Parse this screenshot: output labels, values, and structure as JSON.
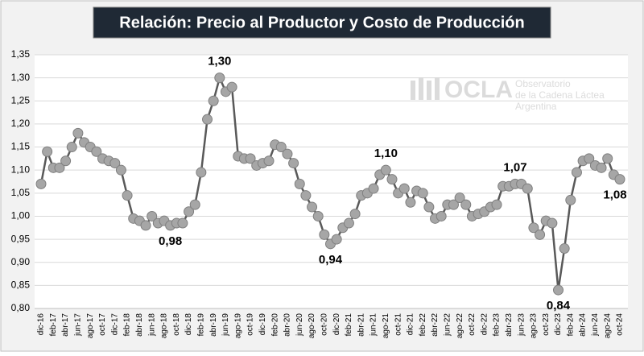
{
  "chart_data": {
    "type": "line",
    "title": "Relación: Precio al Productor y Costo de Producción",
    "watermark": {
      "brand": "OCLA",
      "line1": "Observatorio",
      "line2": "de la Cadena Láctea",
      "line3": "Argentina"
    },
    "categories": [
      "dic-16",
      null,
      "feb-17",
      null,
      "abr-17",
      null,
      "jun-17",
      null,
      "ago-17",
      null,
      "oct-17",
      null,
      "dic-17",
      null,
      "feb-18",
      null,
      "abr-18",
      null,
      "jun-18",
      null,
      "ago-18",
      null,
      "oct-18",
      null,
      "dic-18",
      null,
      "feb-19",
      null,
      "abr-19",
      null,
      "jun-19",
      null,
      "ago-19",
      null,
      "oct-19",
      null,
      "dic-19",
      null,
      "feb-20",
      null,
      "abr-20",
      null,
      "jun-20",
      null,
      "ago-20",
      null,
      "oct-20",
      null,
      "dic-20",
      null,
      "feb-21",
      null,
      "abr-21",
      null,
      "jun-21",
      null,
      "ago-21",
      null,
      "oct-21",
      null,
      "dic-21",
      null,
      "feb-22",
      null,
      "abr-22",
      null,
      "jun-22",
      null,
      "ago-22",
      null,
      "oct-22",
      null,
      "dic-22",
      null,
      "feb-23",
      null,
      "abr-23",
      null,
      "jun-23",
      null,
      "ago-23",
      null,
      "oct-23",
      null,
      "dic-23",
      null,
      "feb-24",
      null,
      "abr-24",
      null,
      "jun-24",
      null,
      "ago-24",
      null,
      "oct-24"
    ],
    "values": [
      1.07,
      1.14,
      1.105,
      1.105,
      1.12,
      1.15,
      1.18,
      1.16,
      1.15,
      1.14,
      1.125,
      1.12,
      1.115,
      1.1,
      1.045,
      0.995,
      0.99,
      0.98,
      1.0,
      0.985,
      0.99,
      0.98,
      0.985,
      0.985,
      1.01,
      1.025,
      1.095,
      1.21,
      1.25,
      1.3,
      1.27,
      1.28,
      1.13,
      1.125,
      1.125,
      1.11,
      1.115,
      1.12,
      1.155,
      1.15,
      1.135,
      1.115,
      1.07,
      1.045,
      1.02,
      1.0,
      0.96,
      0.94,
      0.95,
      0.975,
      0.985,
      1.005,
      1.045,
      1.05,
      1.06,
      1.09,
      1.1,
      1.08,
      1.05,
      1.06,
      1.03,
      1.055,
      1.05,
      1.02,
      0.995,
      1.0,
      1.025,
      1.025,
      1.04,
      1.025,
      1.0,
      1.005,
      1.01,
      1.02,
      1.025,
      1.065,
      1.065,
      1.07,
      1.07,
      1.06,
      0.975,
      0.96,
      0.99,
      0.985,
      0.84,
      0.93,
      1.035,
      1.095,
      1.12,
      1.125,
      1.11,
      1.105,
      1.125,
      1.09,
      1.08
    ],
    "value_labels": [
      null,
      null,
      null,
      null,
      null,
      null,
      null,
      null,
      null,
      null,
      null,
      null,
      null,
      null,
      null,
      null,
      null,
      null,
      null,
      null,
      null,
      "0,98",
      null,
      null,
      null,
      null,
      null,
      null,
      null,
      "1,30",
      null,
      null,
      null,
      null,
      null,
      null,
      null,
      null,
      null,
      null,
      null,
      null,
      null,
      null,
      null,
      null,
      null,
      "0,94",
      null,
      null,
      null,
      null,
      null,
      null,
      null,
      null,
      "1,10",
      null,
      null,
      null,
      null,
      null,
      null,
      null,
      null,
      null,
      null,
      null,
      null,
      null,
      null,
      null,
      null,
      null,
      null,
      null,
      null,
      "1,07",
      null,
      null,
      null,
      null,
      null,
      null,
      "0,84",
      null,
      null,
      null,
      null,
      null,
      null,
      null,
      null,
      null,
      "1,08"
    ],
    "line_color": "#595959",
    "marker_color": "#a6a6a6",
    "ylim": [
      0.8,
      1.35
    ],
    "yticks": [
      {
        "value": 0.8,
        "label": "0,80"
      },
      {
        "value": 0.85,
        "label": "0,85"
      },
      {
        "value": 0.9,
        "label": "0,90"
      },
      {
        "value": 0.95,
        "label": "0,95"
      },
      {
        "value": 1.0,
        "label": "1,00"
      },
      {
        "value": 1.05,
        "label": "1,05"
      },
      {
        "value": 1.1,
        "label": "1,10"
      },
      {
        "value": 1.15,
        "label": "1,15"
      },
      {
        "value": 1.2,
        "label": "1,20"
      },
      {
        "value": 1.25,
        "label": "1,25"
      },
      {
        "value": 1.3,
        "label": "1,30"
      },
      {
        "value": 1.35,
        "label": "1,35"
      }
    ],
    "grid": true
  }
}
